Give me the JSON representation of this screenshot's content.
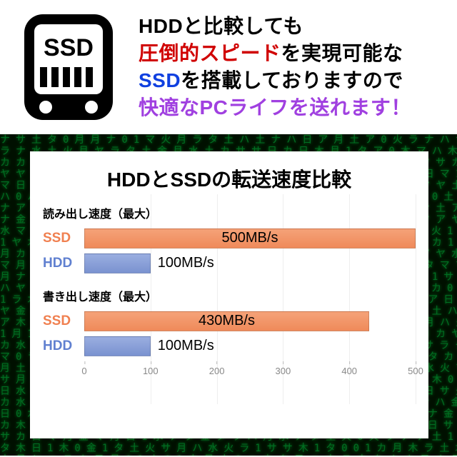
{
  "header": {
    "line1_a": "HDDと比較しても",
    "line2_a": "圧倒的スピード",
    "line2_b": "を実現可能な",
    "line3_a": "SSD",
    "line3_b": "を搭載しておりますので",
    "line4_a": "快適なPCライフを送れます！",
    "icon_label": "SSD"
  },
  "chart": {
    "type": "bar",
    "title": "HDDとSSDの転送速度比較",
    "xlim": [
      0,
      500
    ],
    "xtick_step": 100,
    "xticks": [
      0,
      100,
      200,
      300,
      400,
      500
    ],
    "background_color": "#ffffff",
    "grid_color": "#eeeeee",
    "tick_color": "#888888",
    "title_fontsize": 28,
    "label_fontsize": 16,
    "sections": [
      {
        "label": "読み出し速度（最大）",
        "bars": [
          {
            "name": "SSD",
            "value": 500,
            "value_label": "500MB/s",
            "color": "#f08050",
            "label_color": "#f08050"
          },
          {
            "name": "HDD",
            "value": 100,
            "value_label": "100MB/s",
            "color": "#7a92d0",
            "label_color": "#6080d0"
          }
        ]
      },
      {
        "label": "書き出し速度（最大）",
        "bars": [
          {
            "name": "SSD",
            "value": 430,
            "value_label": "430MB/s",
            "color": "#f08050",
            "label_color": "#f08050"
          },
          {
            "name": "HDD",
            "value": 100,
            "value_label": "100MB/s",
            "color": "#7a92d0",
            "label_color": "#6080d0"
          }
        ]
      }
    ]
  },
  "colors": {
    "text_black": "#000000",
    "text_red": "#d00000",
    "text_blue": "#1040e0",
    "text_purple": "#a040e0",
    "matrix_bg": "#001000",
    "matrix_text": "#00cc44"
  }
}
